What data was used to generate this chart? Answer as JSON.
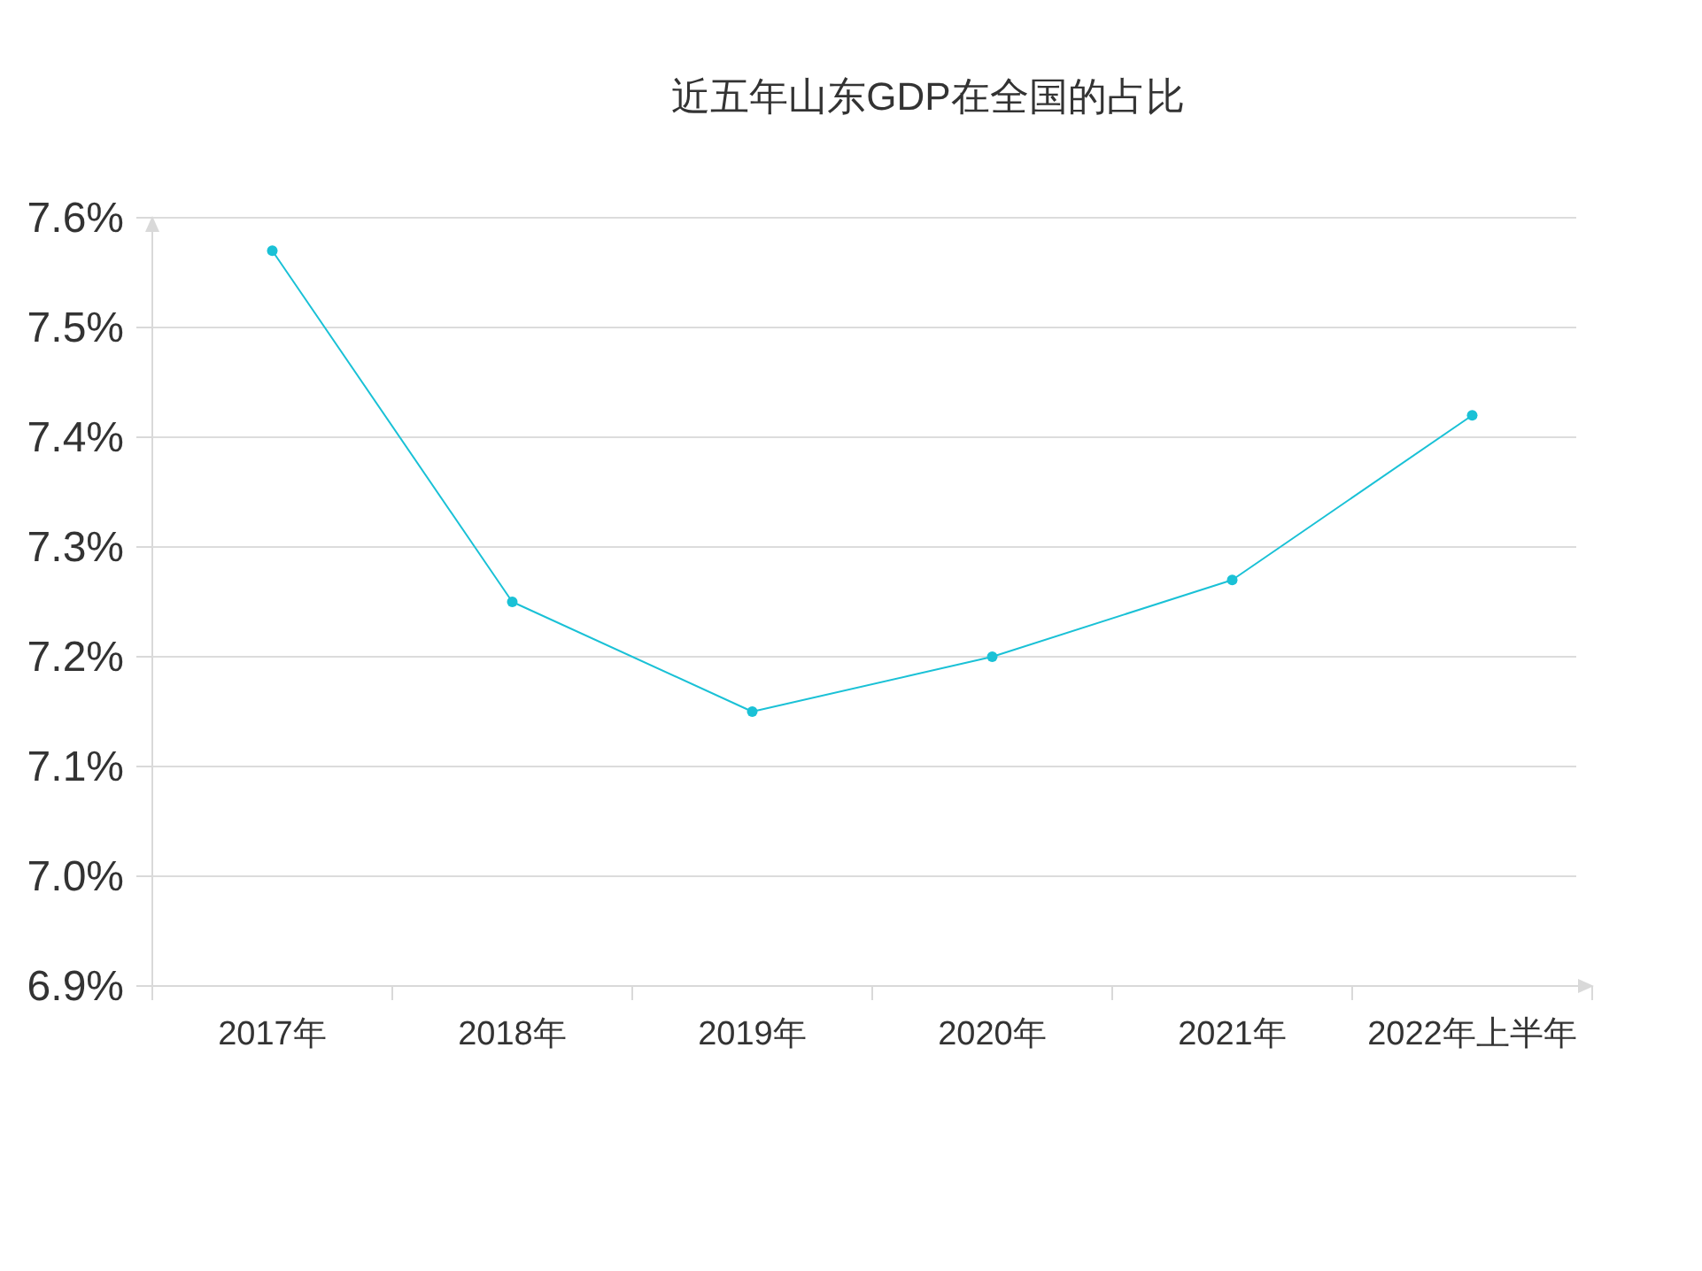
{
  "chart_data": {
    "type": "line",
    "title": "近五年山东GDP在全国的占比",
    "categories": [
      "2017年",
      "2018年",
      "2019年",
      "2020年",
      "2021年",
      "2022年上半年"
    ],
    "series": [
      {
        "color": "#1ac1d6",
        "values": [
          7.57,
          7.25,
          7.15,
          7.2,
          7.27,
          7.42
        ]
      }
    ],
    "ylim": [
      6.9,
      7.6
    ],
    "yticks": [
      {
        "value": 6.9,
        "label": "6.9%"
      },
      {
        "value": 7.0,
        "label": "7.0%"
      },
      {
        "value": 7.1,
        "label": "7.1%"
      },
      {
        "value": 7.2,
        "label": "7.2%"
      },
      {
        "value": 7.3,
        "label": "7.3%"
      },
      {
        "value": 7.4,
        "label": "7.4%"
      },
      {
        "value": 7.5,
        "label": "7.5%"
      },
      {
        "value": 7.6,
        "label": "7.6%"
      }
    ],
    "grid": "y",
    "marker": "circle",
    "line_style": "solid"
  }
}
